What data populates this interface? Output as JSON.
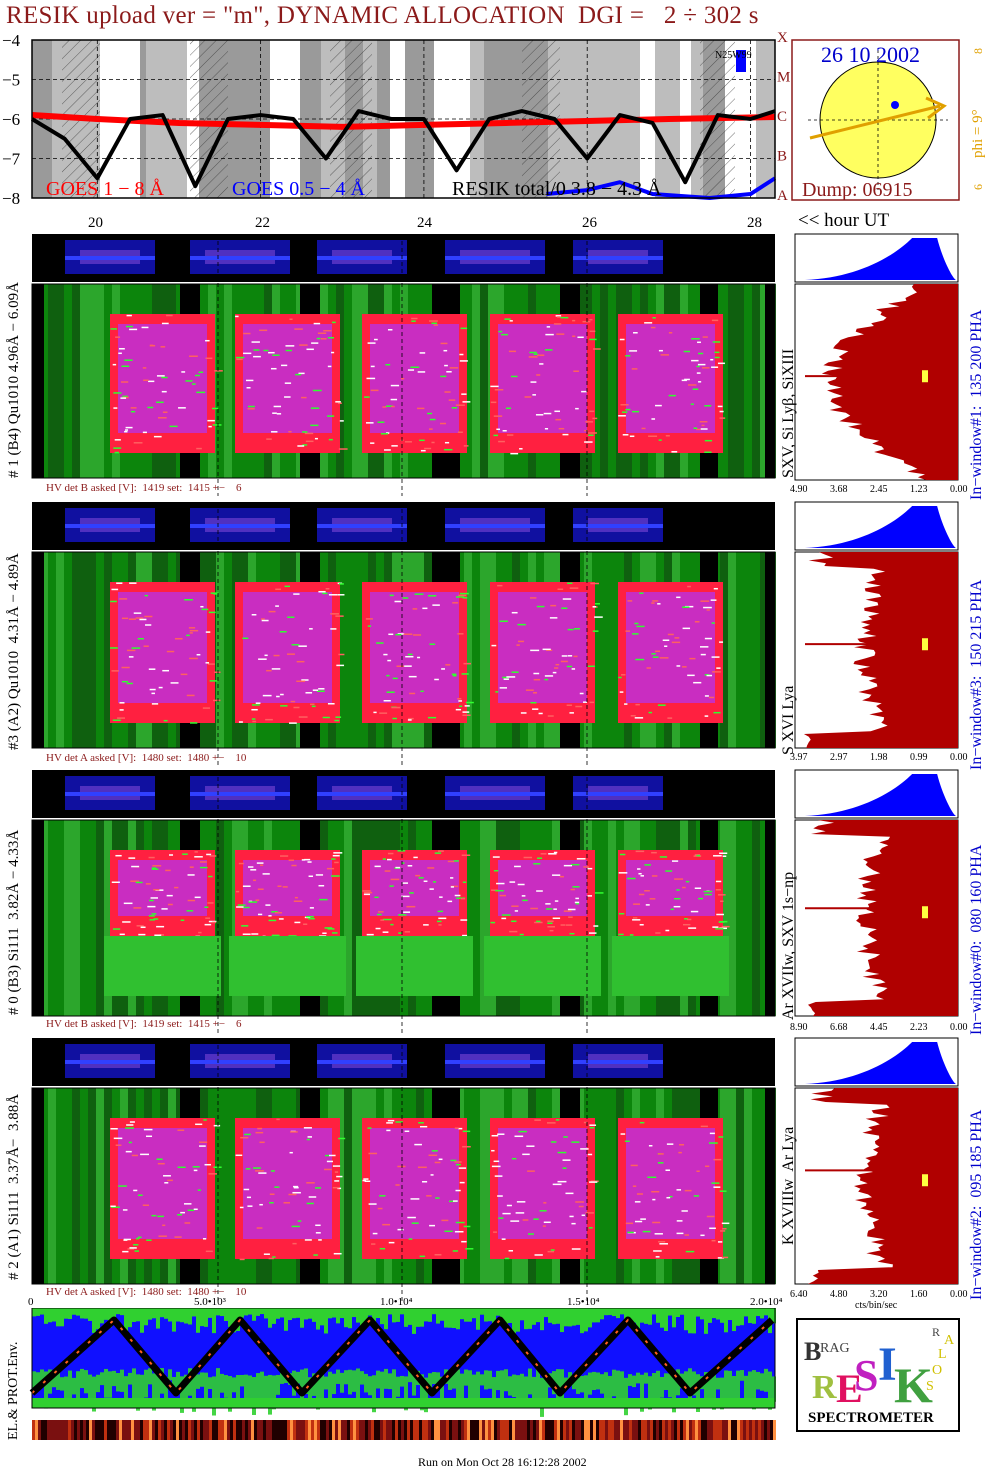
{
  "title": "RESIK upload ver = \"m\", DYNAMIC ALLOCATION  DGI =   2 ÷ 302 s",
  "goes": {
    "yticks": [
      "−4",
      "−5",
      "−6",
      "−7",
      "−8"
    ],
    "class_labels": [
      "X",
      "M",
      "C",
      "B",
      "A"
    ],
    "legend_red": "GOES 1 − 8 Å",
    "legend_blue": "GOES 0.5 − 4 Å",
    "legend_black": "RESIK total/0  3.8 − 4.3 Å",
    "annotation": "N25W99",
    "hour_ticks": [
      "20",
      "22",
      "24",
      "26",
      "28"
    ],
    "hour_label": "<< hour UT"
  },
  "sun": {
    "date": "26 10 2002",
    "dump": "Dump: 06915",
    "phi_label": "phi =  9°",
    "phi_top": "8",
    "phi_bottom": "6"
  },
  "channels": [
    {
      "ylabel": "# 1 (B4) Qu1010 4.96Å − 6.09Å",
      "line_label": "SXV, Si Lyβ, SiXIII",
      "hv": "HV det B asked [V]:  1419 set:  1415 +−    6",
      "window": "In−window#1:  135 200 PHA",
      "xticks": [
        "4.90",
        "3.68",
        "2.45",
        "1.23",
        "0.00"
      ]
    },
    {
      "ylabel": "#3 (A2) Qu1010  4.31Å − 4.89Å",
      "line_label": "S XVI Lya",
      "hv": "HV det A asked [V]:  1480 set:  1480 +−    10",
      "window": "In−window#3:  150 215 PHA",
      "xticks": [
        "3.97",
        "2.97",
        "1.98",
        "0.99",
        "0.00"
      ]
    },
    {
      "ylabel": "# 0 (B3) Si111  3.82Å − 4.33Å",
      "line_label": "Ar XVIIw, SXV 1s−np",
      "hv": "HV det B asked [V]:  1419 set:  1415 +−    6",
      "window": "In−window#0:  080 160 PHA",
      "xticks": [
        "8.90",
        "6.68",
        "4.45",
        "2.23",
        "0.00"
      ]
    },
    {
      "ylabel": "# 2 (A1) Si111  3.37Å−  3.88Å",
      "line_label": "K XVIIIw  Ar Lya",
      "hv": "HV det A asked [V]:  1480 set:  1480 +−    10",
      "window": "In−window#2:  095 185 PHA",
      "xticks": [
        "6.40",
        "4.80",
        "3.20",
        "1.60",
        "0.00"
      ]
    }
  ],
  "bottom_axis": {
    "ticks": [
      "0",
      "5.0•10³",
      "1.0•10⁴",
      "1.5•10⁴",
      "2.0•10⁴"
    ],
    "unit": "cts/bin/sec"
  },
  "env_label": "EL.& PROT.Env.",
  "logo": {
    "words": [
      "BRAG",
      "RESIK",
      "SOLAR"
    ],
    "footer": "SPECTROMETER"
  },
  "footer": "Run on Mon Oct 28 16:12:28 2002",
  "colors": {
    "dark_red": "#8b1a1a",
    "blue": "#0000ff",
    "green": "#00a000",
    "magenta": "#c040e0",
    "red": "#ff2020",
    "yellow": "#ffff40",
    "orange": "#e0a000",
    "spectrum_fill": "#b00000"
  },
  "chart_data": [
    {
      "type": "line",
      "title": "RESIK upload ver = \"m\", DYNAMIC ALLOCATION  DGI =   2 ÷ 302 s",
      "xlabel": "<< hour UT",
      "ylabel": "",
      "x_ticks": [
        20,
        22,
        24,
        26,
        28
      ],
      "ylim": [
        -8,
        -4
      ],
      "y_scale": "log10 flux",
      "series": [
        {
          "name": "GOES 1 − 8 Å",
          "color": "#ff0000",
          "x": [
            19.2,
            20,
            21,
            22,
            23,
            24,
            25,
            26,
            27,
            28.3
          ],
          "values": [
            -5.9,
            -6.0,
            -6.1,
            -6.15,
            -6.2,
            -6.15,
            -6.1,
            -6.05,
            -6.0,
            -5.95
          ]
        },
        {
          "name": "GOES 0.5 − 4 Å",
          "color": "#0000ff",
          "x": [
            25.5,
            26.0,
            26.4,
            26.8,
            27.5,
            28.0,
            28.3
          ],
          "values": [
            -7.9,
            -7.8,
            -7.6,
            -7.9,
            -8.0,
            -7.9,
            -7.5
          ]
        },
        {
          "name": "RESIK total/0  3.8 − 4.3 Å",
          "color": "#000000",
          "x": [
            19.2,
            19.6,
            20.0,
            20.4,
            20.8,
            21.2,
            21.6,
            22.0,
            22.4,
            22.8,
            23.2,
            23.6,
            24.0,
            24.4,
            24.8,
            25.2,
            25.6,
            26.0,
            26.4,
            26.8,
            27.2,
            27.6,
            28.0,
            28.3
          ],
          "values": [
            -6.0,
            -6.5,
            -7.5,
            -6.0,
            -5.9,
            -7.7,
            -6.0,
            -5.9,
            -6.0,
            -7.0,
            -5.8,
            -6.0,
            -6.0,
            -7.3,
            -6.0,
            -5.8,
            -6.0,
            -7.0,
            -5.9,
            -6.1,
            -7.6,
            -5.9,
            -6.0,
            -5.8
          ]
        }
      ]
    }
  ]
}
